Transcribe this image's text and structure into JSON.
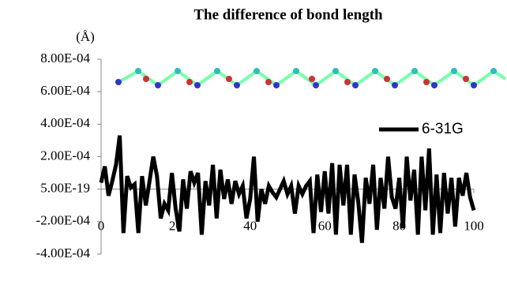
{
  "chart_data": {
    "type": "line",
    "title": "The difference of bond length",
    "y_unit_label": "(Å)",
    "x": [
      0,
      1,
      2,
      3,
      4,
      5,
      6,
      7,
      8,
      9,
      10,
      11,
      12,
      13,
      14,
      15,
      16,
      17,
      18,
      19,
      20,
      21,
      22,
      23,
      24,
      25,
      26,
      27,
      28,
      29,
      30,
      31,
      32,
      33,
      34,
      35,
      36,
      37,
      38,
      39,
      40,
      41,
      42,
      43,
      44,
      45,
      46,
      47,
      48,
      49,
      50,
      51,
      52,
      53,
      54,
      55,
      56,
      57,
      58,
      59,
      60,
      61,
      62,
      63,
      64,
      65,
      66,
      67,
      68,
      69,
      70,
      71,
      72,
      73,
      74,
      75,
      76,
      77,
      78,
      79,
      80,
      81,
      82,
      83,
      84,
      85,
      86,
      87,
      88,
      89,
      90,
      91,
      92,
      93,
      94,
      95,
      96,
      97,
      98,
      99,
      100
    ],
    "series": [
      {
        "name": "6-31G",
        "color": "#000000",
        "values": [
          4e-05,
          0.00014,
          -4e-05,
          5e-05,
          0.00015,
          0.00033,
          -0.00027,
          8e-05,
          1e-05,
          3e-05,
          -0.00027,
          8e-05,
          -0.0001,
          5e-05,
          0.0002,
          8e-05,
          -0.00018,
          -9e-05,
          -0.00013,
          0.0001,
          -0.00012,
          -0.00026,
          6e-05,
          -0.00012,
          0.00011,
          4e-05,
          0.0001,
          -0.00028,
          5e-05,
          -0.0001,
          0.00015,
          -0.00018,
          0.00012,
          -6e-05,
          6e-05,
          -9e-05,
          5e-05,
          -3e-05,
          2e-05,
          -0.00018,
          -6e-05,
          0.0002,
          -0.0002,
          0,
          -9e-05,
          2e-05,
          -2e-05,
          -5e-05,
          0,
          5e-05,
          -3e-05,
          2e-05,
          -0.00015,
          2e-05,
          -3e-05,
          2e-05,
          5e-05,
          -0.00027,
          9e-05,
          -0.00014,
          0.00011,
          -0.00015,
          0.00016,
          -0.00028,
          0.00015,
          -0.0001,
          0.00015,
          -0.00028,
          9e-05,
          -8e-05,
          -0.00033,
          7e-05,
          -9e-05,
          0.00015,
          -0.00025,
          7e-05,
          -0.00012,
          0.0002,
          -5e-05,
          -0.00012,
          7e-05,
          -0.00024,
          0.0002,
          -7e-05,
          0.00012,
          -0.00028,
          0.0002,
          -0.00013,
          0.00025,
          -0.00028,
          9e-05,
          -0.00027,
          0.0001,
          -0.00015,
          7e-05,
          -0.00023,
          7e-05,
          -4e-05,
          0.0001,
          -5e-05,
          -0.00013
        ]
      }
    ],
    "xlim": [
      0,
      100
    ],
    "xticks": [
      0,
      20,
      40,
      60,
      80,
      100
    ],
    "ylim": [
      -0.0004,
      0.0008
    ],
    "yticks": [
      {
        "value": -0.0004,
        "label": "-4.00E-04"
      },
      {
        "value": -0.0002,
        "label": "-2.00E-04"
      },
      {
        "value": 5e-19,
        "label": "5.00E-19"
      },
      {
        "value": 0.0002,
        "label": "2.00E-04"
      },
      {
        "value": 0.0004,
        "label": "4.00E-04"
      },
      {
        "value": 0.0006,
        "label": "6.00E-04"
      },
      {
        "value": 0.0008,
        "label": "8.00E-04"
      }
    ],
    "legend": "upper-right"
  }
}
